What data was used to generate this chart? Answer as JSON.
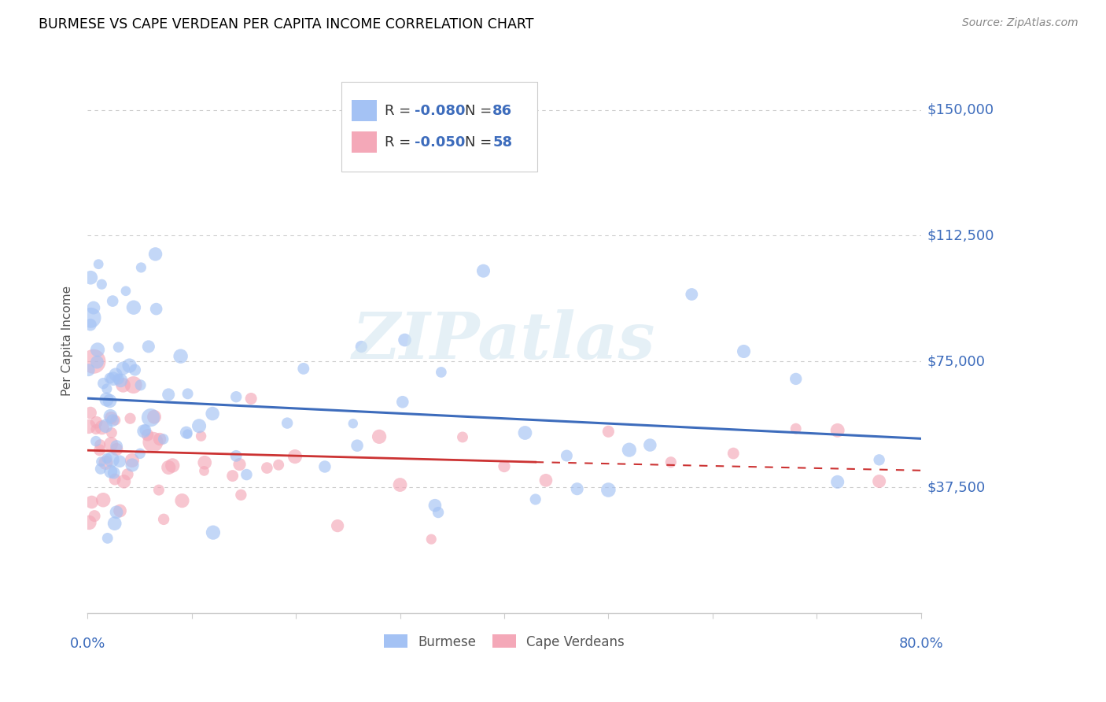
{
  "title": "BURMESE VS CAPE VERDEAN PER CAPITA INCOME CORRELATION CHART",
  "source": "Source: ZipAtlas.com",
  "ylabel": "Per Capita Income",
  "burmese_R": -0.08,
  "burmese_N": 86,
  "capeverdean_R": -0.05,
  "capeverdean_N": 58,
  "burmese_color": "#a4c2f4",
  "capeverdean_color": "#f4a8b8",
  "burmese_line_color": "#3d6cbc",
  "capeverdean_line_color": "#cc3333",
  "yticks": [
    0,
    37500,
    75000,
    112500,
    150000
  ],
  "ytick_labels": [
    "",
    "$37,500",
    "$75,000",
    "$112,500",
    "$150,000"
  ],
  "ylim": [
    0,
    162500
  ],
  "xlim": [
    0.0,
    0.8
  ],
  "watermark": "ZIPatlas",
  "background_color": "#ffffff",
  "grid_color": "#cccccc",
  "title_color": "#000000",
  "axis_label_color": "#3d6cbc",
  "legend_text_color": "#333333",
  "legend_value_color": "#3d6cbc",
  "source_color": "#888888",
  "ylabel_color": "#555555"
}
